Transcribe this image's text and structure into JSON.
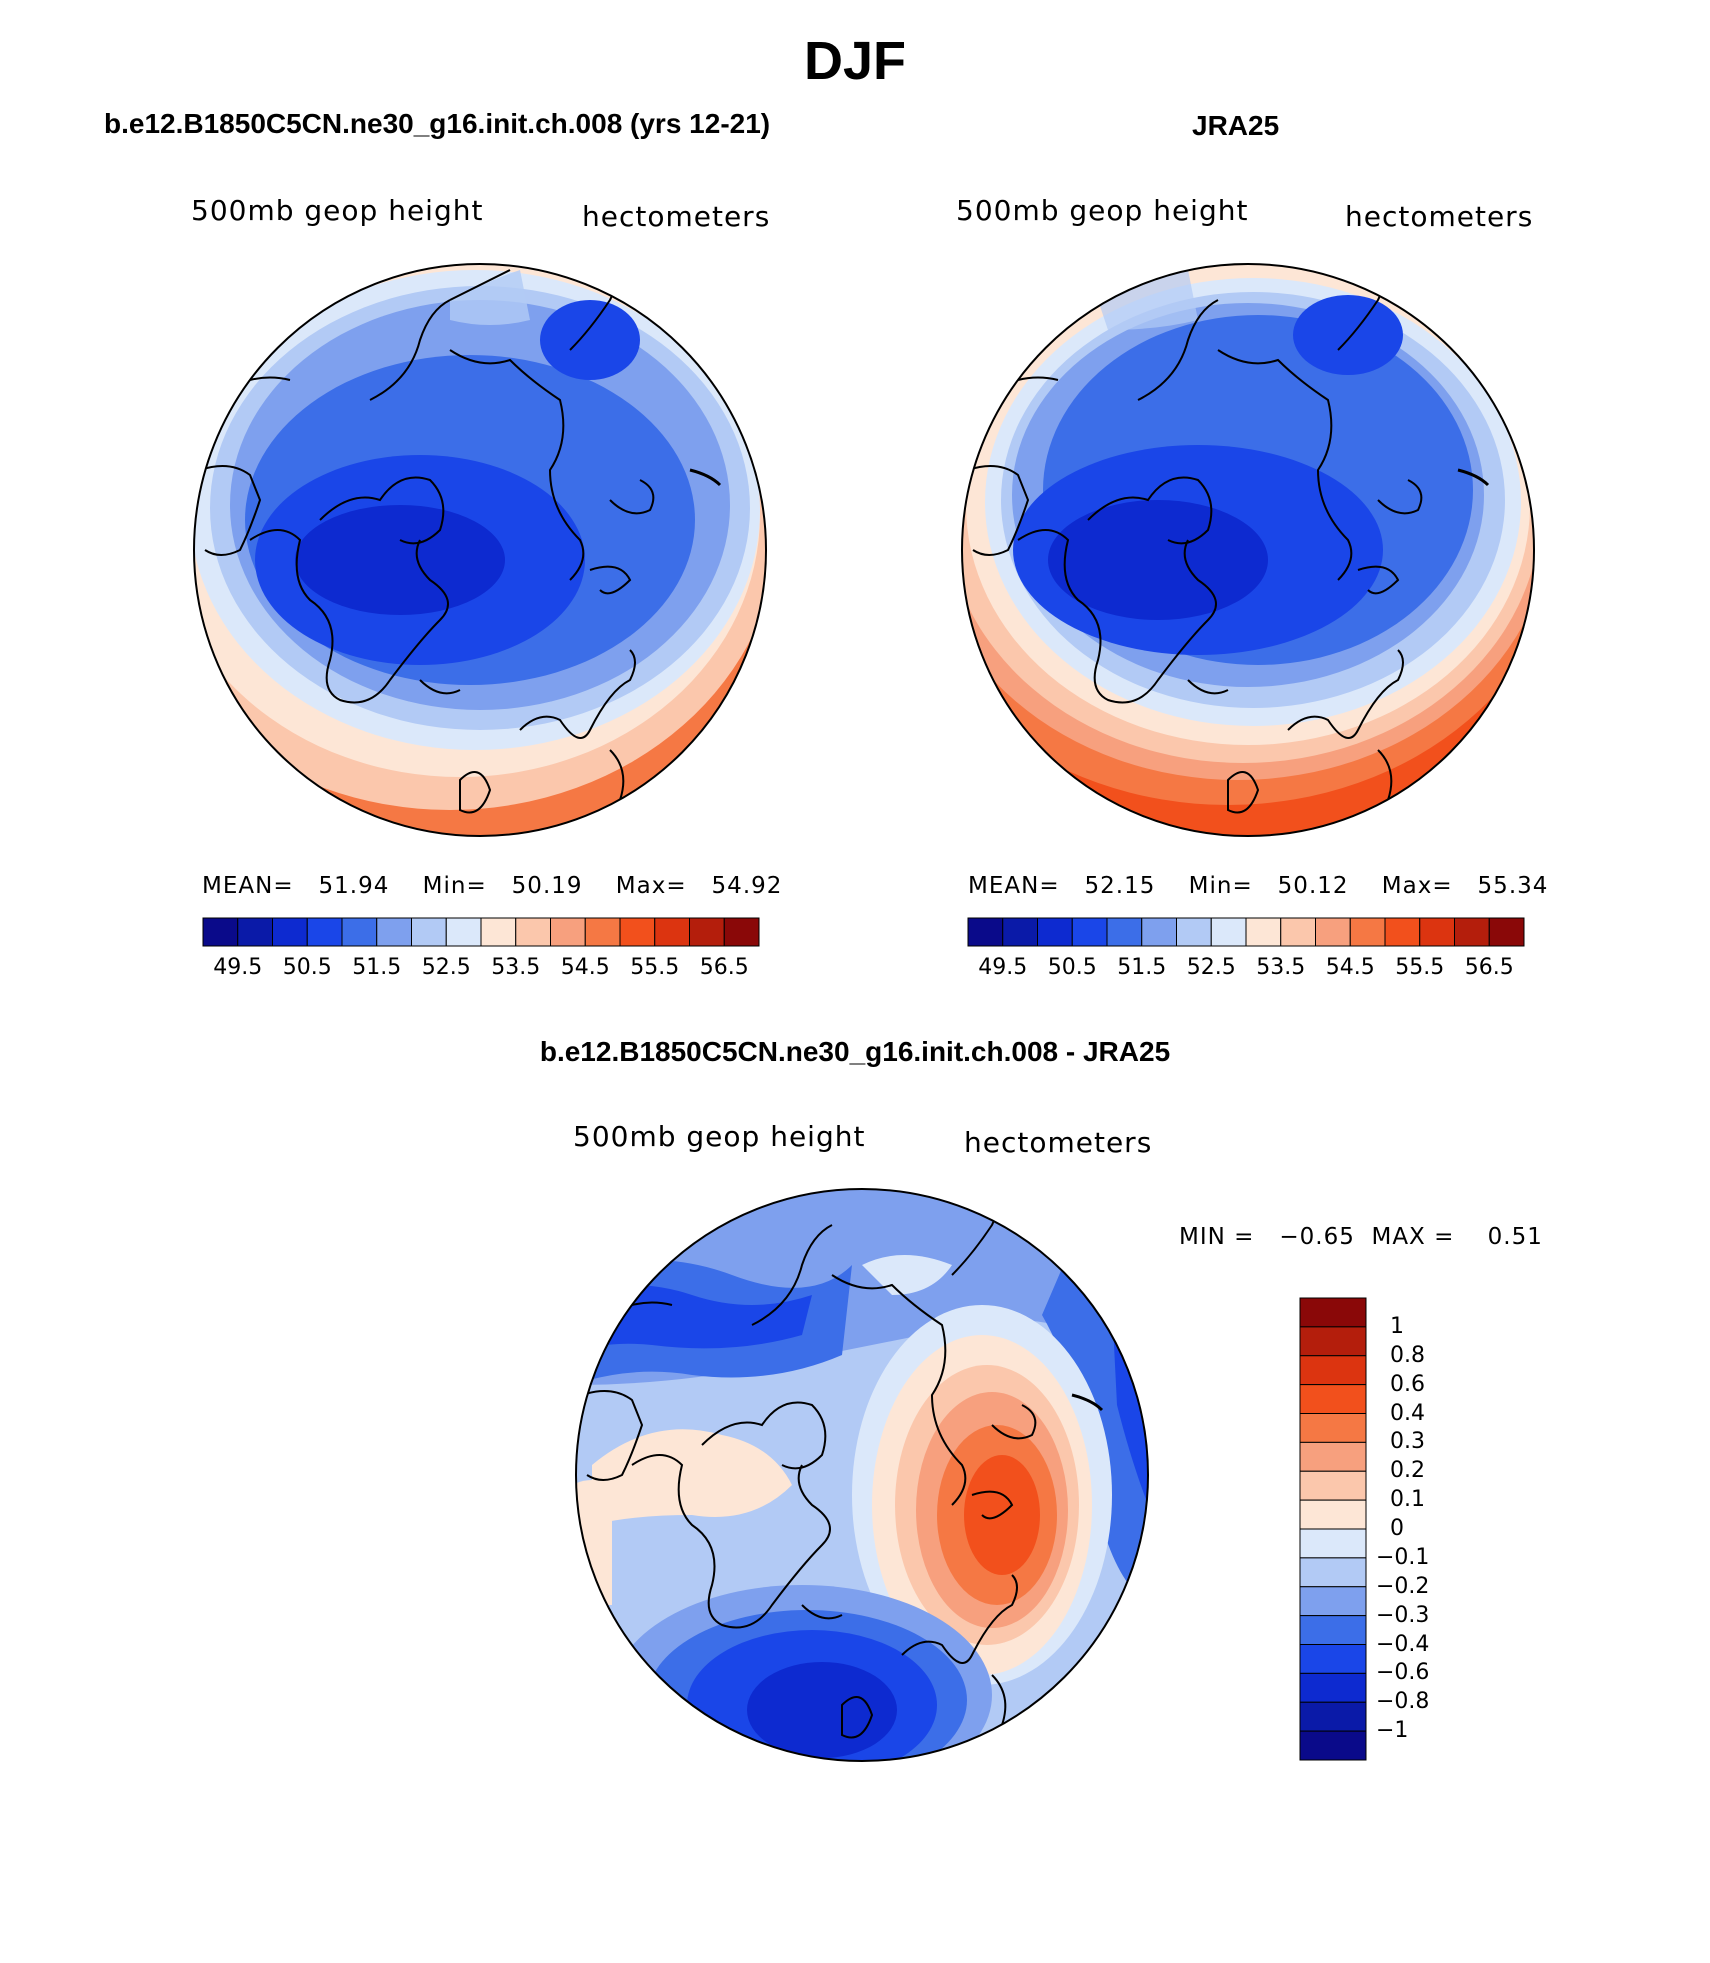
{
  "title": "DJF",
  "colors": {
    "cold_scale": [
      "#0a0a8a",
      "#0a1aa8",
      "#0d2ad0",
      "#1a46e8",
      "#3c6ee8",
      "#7ea0ee",
      "#b2caf5",
      "#dbe8fa"
    ],
    "warm_scale": [
      "#fde6d6",
      "#fbc7ac",
      "#f7a07e",
      "#f57844",
      "#f2501c",
      "#dc3410",
      "#b41e0c",
      "#8a0808"
    ],
    "outline": "#000000"
  },
  "panels": [
    {
      "title": "b.e12.B1850C5CN.ne30_g16.init.ch.008 (yrs 12-21)",
      "left_label": "500mb geop height",
      "right_label": "hectometers",
      "stats": {
        "mean_label": "MEAN=",
        "mean": "51.94",
        "min_label": "Min=",
        "min": "50.19",
        "max_label": "Max=",
        "max": "54.92"
      },
      "colorbar_labels": [
        "49.5",
        "50.5",
        "51.5",
        "52.5",
        "53.5",
        "54.5",
        "55.5",
        "56.5"
      ]
    },
    {
      "title": "JRA25",
      "left_label": "500mb geop height",
      "right_label": "hectometers",
      "stats": {
        "mean_label": "MEAN=",
        "mean": "52.15",
        "min_label": "Min=",
        "min": "50.12",
        "max_label": "Max=",
        "max": "55.34"
      },
      "colorbar_labels": [
        "49.5",
        "50.5",
        "51.5",
        "52.5",
        "53.5",
        "54.5",
        "55.5",
        "56.5"
      ]
    }
  ],
  "diff_panel": {
    "title": "b.e12.B1850C5CN.ne30_g16.init.ch.008 - JRA25",
    "left_label": "500mb geop height",
    "right_label": "hectometers",
    "minmax": {
      "min_label": "MIN =",
      "min": "−0.65",
      "max_label": "MAX =",
      "max": "0.51"
    },
    "colorbar_labels": [
      "1",
      "0.8",
      "0.6",
      "0.4",
      "0.3",
      "0.2",
      "0.1",
      "0",
      "−0.1",
      "−0.2",
      "−0.3",
      "−0.4",
      "−0.6",
      "−0.8",
      "−1"
    ],
    "colorbar_colors": [
      "#8a0808",
      "#b41e0c",
      "#dc3410",
      "#f2501c",
      "#f57844",
      "#f7a07e",
      "#fbc7ac",
      "#fde6d6",
      "#dbe8fa",
      "#b2caf5",
      "#7ea0ee",
      "#3c6ee8",
      "#1a46e8",
      "#0d2ad0",
      "#0a1aa8",
      "#0a0a8a"
    ]
  }
}
